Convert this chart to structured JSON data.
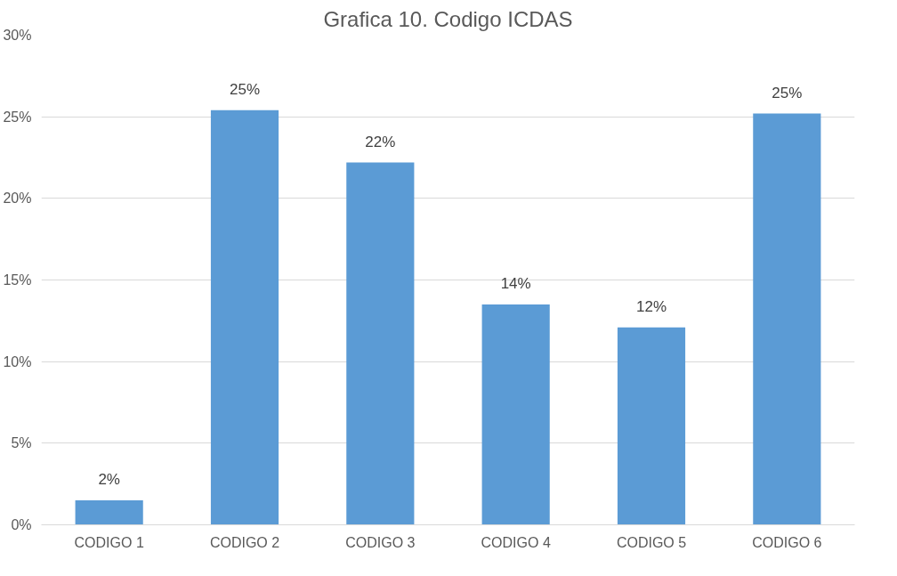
{
  "chart_data": {
    "type": "bar",
    "title": "Grafica 10. Codigo ICDAS",
    "categories": [
      "CODIGO 1",
      "CODIGO 2",
      "CODIGO 3",
      "CODIGO 4",
      "CODIGO 5",
      "CODIGO 6"
    ],
    "values": [
      1.5,
      25.4,
      22.2,
      13.5,
      12.1,
      25.2
    ],
    "value_labels": [
      "2%",
      "25%",
      "22%",
      "14%",
      "12%",
      "25%"
    ],
    "color": "#5b9bd5",
    "ylim": [
      0,
      30
    ],
    "yticks": [
      {
        "value": 0,
        "label": "0%"
      },
      {
        "value": 5,
        "label": "5%"
      },
      {
        "value": 10,
        "label": "10%"
      },
      {
        "value": 15,
        "label": "15%"
      },
      {
        "value": 20,
        "label": "20%"
      },
      {
        "value": 25,
        "label": "25%"
      },
      {
        "value": 30,
        "label": "30%"
      }
    ],
    "grid": "y"
  }
}
